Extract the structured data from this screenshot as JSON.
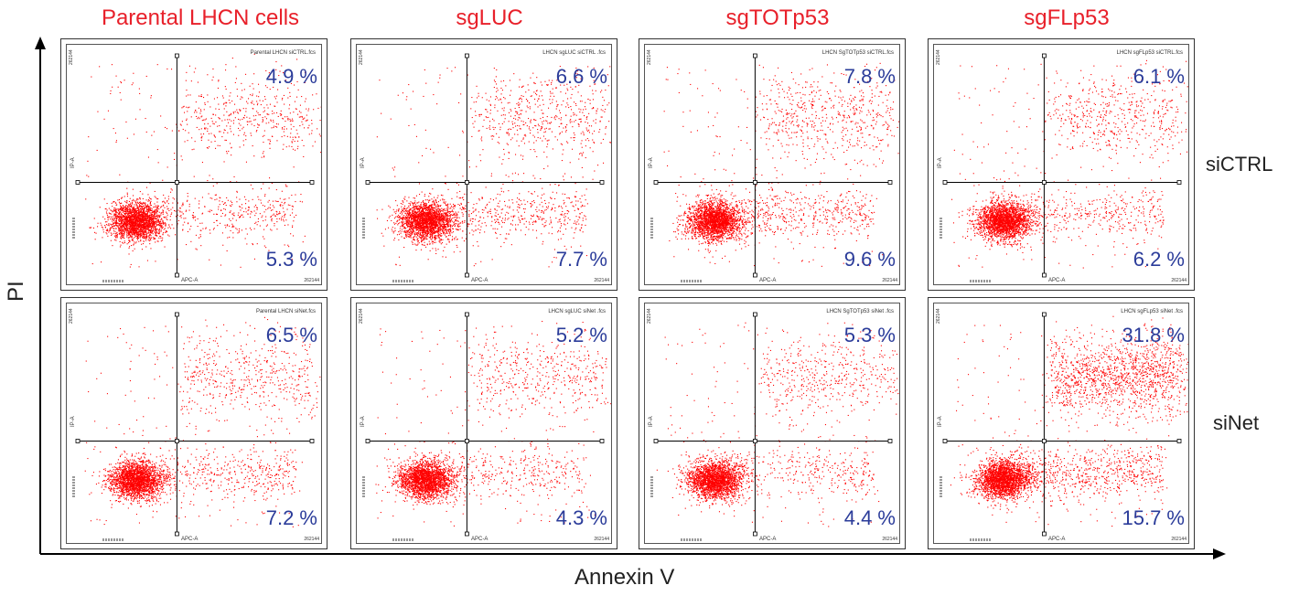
{
  "y_axis_label": "PI",
  "x_axis_label": "Annexin V",
  "colors": {
    "title": "#e8202a",
    "percent": "#2b3c9a",
    "dots": "#ff0000",
    "axis": "#000000"
  },
  "chart_data": {
    "type": "scatter",
    "xlabel": "Annexin V",
    "ylabel": "PI",
    "columns": [
      "Parental LHCN cells",
      "sgLUC",
      "sgTOTp53",
      "sgFLp53"
    ],
    "rows": [
      "siCTRL",
      "siNet"
    ],
    "panel_axis_labels": {
      "x": "APC-A",
      "y": "IP-A",
      "max_tick": "262144"
    },
    "panels": [
      {
        "column": "Parental LHCN cells",
        "row": "siCTRL",
        "file": "Parental LHCN siCTRL.fcs",
        "upper_right_pct": "4.9 %",
        "lower_right_pct": "5.3 %"
      },
      {
        "column": "sgLUC",
        "row": "siCTRL",
        "file": "LHCN sgLUC siCTRL .fcs",
        "upper_right_pct": "6.6 %",
        "lower_right_pct": "7.7 %"
      },
      {
        "column": "sgTOTp53",
        "row": "siCTRL",
        "file": "LHCN SgTOTp53 siCTRL.fcs",
        "upper_right_pct": "7.8 %",
        "lower_right_pct": "9.6 %"
      },
      {
        "column": "sgFLp53",
        "row": "siCTRL",
        "file": "LHCN sgFLp53 siCTRL.fcs",
        "upper_right_pct": "6.1 %",
        "lower_right_pct": "6.2 %"
      },
      {
        "column": "Parental LHCN cells",
        "row": "siNet",
        "file": "Parental LHCN siNet.fcs",
        "upper_right_pct": "6.5 %",
        "lower_right_pct": "7.2 %"
      },
      {
        "column": "sgLUC",
        "row": "siNet",
        "file": "LHCN sgLUC siNet .fcs",
        "upper_right_pct": "5.2 %",
        "lower_right_pct": "4.3 %"
      },
      {
        "column": "sgTOTp53",
        "row": "siNet",
        "file": "LHCN SgTOTp53 siNet .fcs",
        "upper_right_pct": "5.3 %",
        "lower_right_pct": "4.4 %"
      },
      {
        "column": "sgFLp53",
        "row": "siNet",
        "file": "LHCN sgFLp53 siNet .fcs",
        "upper_right_pct": "31.8 %",
        "lower_right_pct": "15.7 %"
      }
    ]
  }
}
